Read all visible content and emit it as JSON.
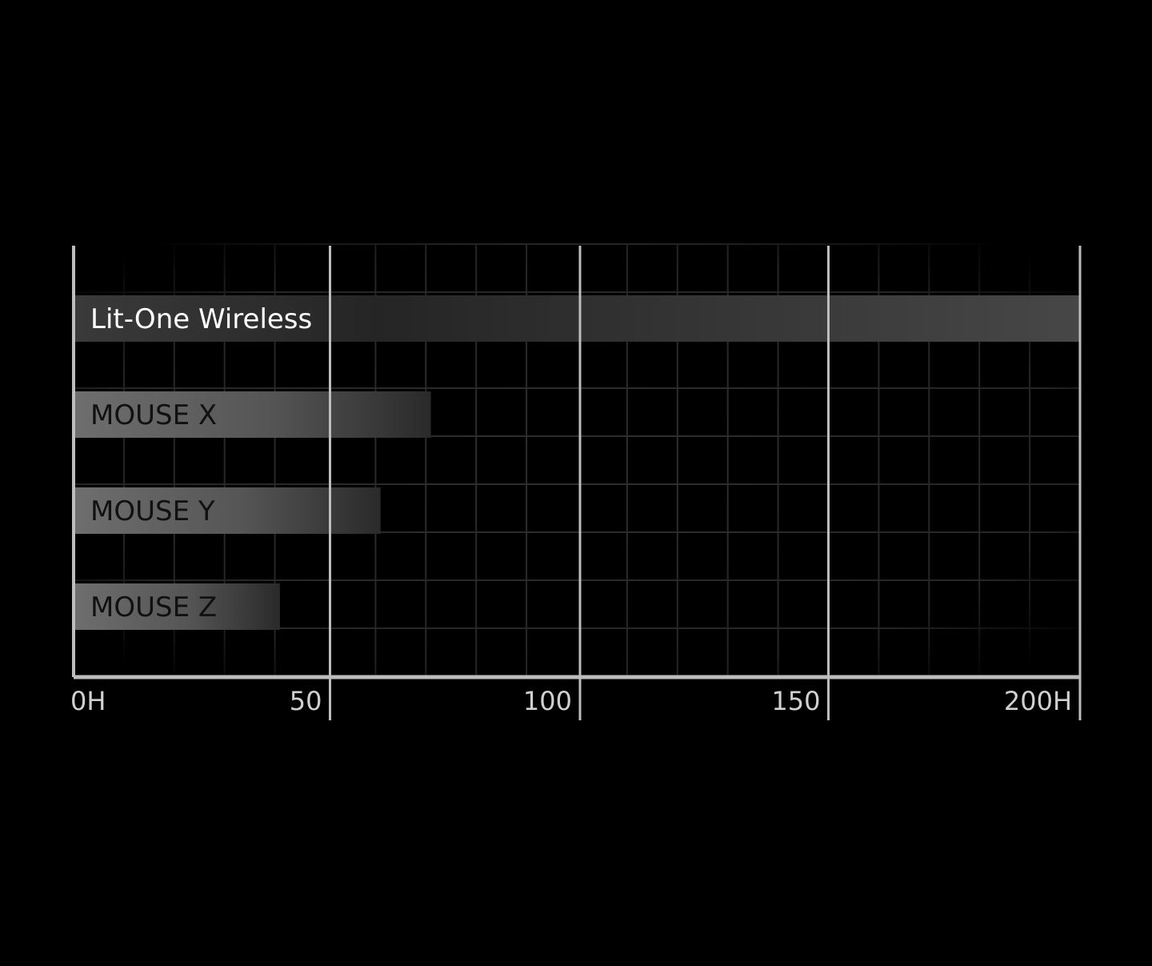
{
  "chart_data": {
    "type": "bar",
    "orientation": "horizontal",
    "categories": [
      "Lit-One Wireless",
      "MOUSE X",
      "MOUSE Y",
      "MOUSE Z"
    ],
    "values": [
      200,
      71,
      61,
      41
    ],
    "xlim": [
      0,
      200
    ],
    "ticks": [
      0,
      50,
      100,
      150,
      200
    ],
    "tick_labels": [
      "0H",
      "50",
      "100",
      "150",
      "200H"
    ],
    "grid": true,
    "colors": {
      "background": "#000000",
      "highlight_bar_start": "#3a3a3a",
      "highlight_bar_end": "#474747",
      "bar_start": "#6e6e6e",
      "bar_end": "#2a2a2a",
      "axis": "#bdbdbd",
      "highlight_label": "#ffffff",
      "label": "#111111",
      "tick_label": "#d0d0d0"
    }
  }
}
